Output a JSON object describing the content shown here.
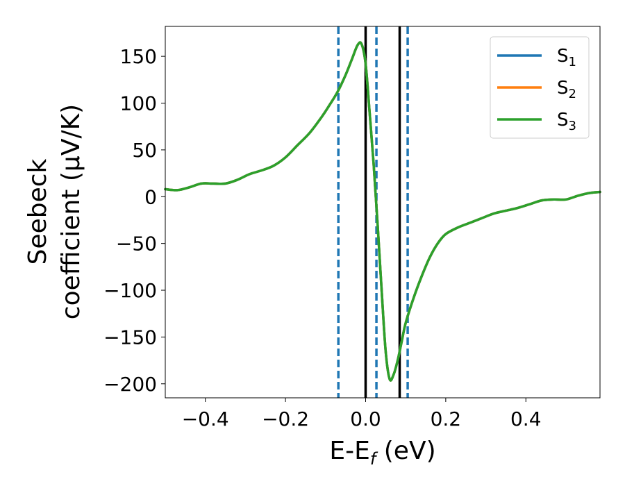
{
  "chart_data": {
    "type": "line",
    "title": "",
    "xlabel_main": "E-E",
    "xlabel_sub": "f",
    "xlabel_units": " (eV)",
    "ylabel_line1": "Seebeck",
    "ylabel_line2": "coefficient  (μV/K)",
    "xlim": [
      -0.5,
      0.585
    ],
    "ylim": [
      -215,
      182
    ],
    "xticks": [
      -0.4,
      -0.2,
      0.0,
      0.2,
      0.4
    ],
    "xtick_labels": [
      "−0.4",
      "−0.2",
      "0.0",
      "0.2",
      "0.4"
    ],
    "yticks": [
      150,
      100,
      50,
      0,
      -50,
      -100,
      -150,
      -200
    ],
    "ytick_labels": [
      "150",
      "100",
      "50",
      "0",
      "−50",
      "−100",
      "−150",
      "−200"
    ],
    "grid": false,
    "legend_placement": "top-right",
    "series": [
      {
        "name": "S",
        "name_sub": "1",
        "color": "#1f77b4",
        "x": [
          -0.5,
          -0.47,
          -0.44,
          -0.41,
          -0.38,
          -0.35,
          -0.32,
          -0.29,
          -0.26,
          -0.23,
          -0.2,
          -0.17,
          -0.14,
          -0.11,
          -0.09,
          -0.07,
          -0.05,
          -0.035,
          -0.02,
          -0.01,
          0.0,
          0.01,
          0.02,
          0.03,
          0.04,
          0.05,
          0.06,
          0.07,
          0.08,
          0.09,
          0.1,
          0.12,
          0.14,
          0.16,
          0.18,
          0.2,
          0.23,
          0.26,
          0.29,
          0.32,
          0.35,
          0.38,
          0.41,
          0.44,
          0.47,
          0.5,
          0.53,
          0.56,
          0.585
        ],
        "y": [
          8,
          7,
          10,
          14,
          14,
          14,
          18,
          24,
          28,
          33,
          42,
          55,
          68,
          85,
          98,
          112,
          130,
          146,
          162,
          163,
          142,
          90,
          35,
          -30,
          -100,
          -165,
          -195,
          -190,
          -175,
          -155,
          -135,
          -108,
          -85,
          -65,
          -50,
          -40,
          -33,
          -28,
          -23,
          -18,
          -15,
          -12,
          -8,
          -4,
          -3,
          -3,
          1,
          4,
          5
        ]
      },
      {
        "name": "S",
        "name_sub": "2",
        "color": "#ff7f0e",
        "x": [
          -0.5,
          -0.47,
          -0.44,
          -0.41,
          -0.38,
          -0.35,
          -0.32,
          -0.29,
          -0.26,
          -0.23,
          -0.2,
          -0.17,
          -0.14,
          -0.11,
          -0.09,
          -0.07,
          -0.05,
          -0.035,
          -0.02,
          -0.01,
          0.0,
          0.01,
          0.02,
          0.03,
          0.04,
          0.05,
          0.06,
          0.07,
          0.08,
          0.09,
          0.1,
          0.12,
          0.14,
          0.16,
          0.18,
          0.2,
          0.23,
          0.26,
          0.29,
          0.32,
          0.35,
          0.38,
          0.41,
          0.44,
          0.47,
          0.5,
          0.53,
          0.56,
          0.585
        ],
        "y": [
          8,
          7,
          10,
          14,
          14,
          14,
          18,
          24,
          28,
          33,
          42,
          55,
          68,
          85,
          98,
          112,
          130,
          146,
          162,
          163,
          142,
          90,
          35,
          -30,
          -100,
          -165,
          -195,
          -190,
          -175,
          -155,
          -135,
          -108,
          -85,
          -65,
          -50,
          -40,
          -33,
          -28,
          -23,
          -18,
          -15,
          -12,
          -8,
          -4,
          -3,
          -3,
          1,
          4,
          5
        ]
      },
      {
        "name": "S",
        "name_sub": "3",
        "color": "#2ca02c",
        "x": [
          -0.5,
          -0.47,
          -0.44,
          -0.41,
          -0.38,
          -0.35,
          -0.32,
          -0.29,
          -0.26,
          -0.23,
          -0.2,
          -0.17,
          -0.14,
          -0.11,
          -0.09,
          -0.07,
          -0.05,
          -0.035,
          -0.02,
          -0.01,
          0.0,
          0.01,
          0.02,
          0.03,
          0.04,
          0.05,
          0.06,
          0.07,
          0.08,
          0.09,
          0.1,
          0.12,
          0.14,
          0.16,
          0.18,
          0.2,
          0.23,
          0.26,
          0.29,
          0.32,
          0.35,
          0.38,
          0.41,
          0.44,
          0.47,
          0.5,
          0.53,
          0.56,
          0.585
        ],
        "y": [
          8,
          7,
          10,
          14,
          14,
          14,
          18,
          24,
          28,
          33,
          42,
          55,
          68,
          85,
          98,
          112,
          130,
          146,
          162,
          163,
          142,
          90,
          35,
          -30,
          -100,
          -165,
          -195,
          -190,
          -175,
          -155,
          -135,
          -108,
          -85,
          -65,
          -50,
          -40,
          -33,
          -28,
          -23,
          -18,
          -15,
          -12,
          -8,
          -4,
          -3,
          -3,
          1,
          4,
          5
        ]
      }
    ],
    "vlines": [
      {
        "x": -0.068,
        "style": "dashed",
        "color": "#1f77b4"
      },
      {
        "x": 0.0,
        "style": "solid",
        "color": "#000000"
      },
      {
        "x": 0.027,
        "style": "dashed",
        "color": "#1f77b4"
      },
      {
        "x": 0.085,
        "style": "solid",
        "color": "#000000"
      },
      {
        "x": 0.105,
        "style": "dashed",
        "color": "#1f77b4"
      }
    ]
  }
}
